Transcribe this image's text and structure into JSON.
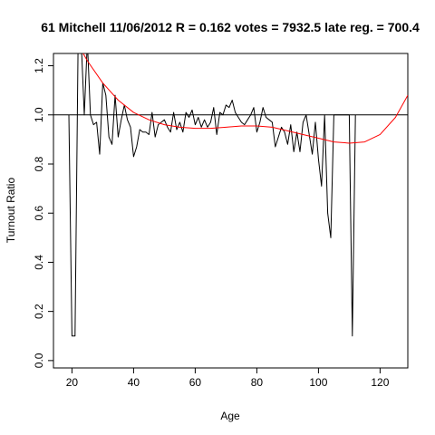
{
  "chart_data": {
    "type": "line",
    "title": "61 Mitchell 11/06/2012 R = 0.162 votes = 7932.5 late reg. = 700.4",
    "xlabel": "Age",
    "ylabel": "Turnout Ratio",
    "xlim": [
      14,
      129
    ],
    "ylim": [
      -0.03,
      1.25
    ],
    "x_ticks": [
      20,
      40,
      60,
      80,
      100,
      120
    ],
    "y_ticks": [
      0.0,
      0.2,
      0.4,
      0.6,
      0.8,
      1.0,
      1.2
    ],
    "x_tick_labels": [
      "20",
      "40",
      "60",
      "80",
      "100",
      "120"
    ],
    "y_tick_labels": [
      "0.0",
      "0.2",
      "0.4",
      "0.6",
      "0.8",
      "1.0",
      "1.2"
    ],
    "reference_line": {
      "y": 1.0,
      "color": "#000000"
    },
    "series": [
      {
        "color": "#000000",
        "x": [
          19,
          20,
          21,
          22,
          23,
          24,
          25,
          26,
          27,
          28,
          29,
          30,
          31,
          32,
          33,
          34,
          35,
          36,
          37,
          38,
          39,
          40,
          41,
          42,
          43,
          44,
          45,
          46,
          47,
          48,
          49,
          50,
          51,
          52,
          53,
          54,
          55,
          56,
          57,
          58,
          59,
          60,
          61,
          62,
          63,
          64,
          65,
          66,
          67,
          68,
          69,
          70,
          71,
          72,
          73,
          74,
          75,
          76,
          77,
          78,
          79,
          80,
          81,
          82,
          83,
          84,
          85,
          86,
          87,
          88,
          89,
          90,
          91,
          92,
          93,
          94,
          95,
          96,
          97,
          98,
          99,
          100,
          101,
          102,
          103,
          104,
          105,
          106,
          107,
          108,
          109,
          110,
          111,
          112
        ],
        "y": [
          1.0,
          0.1,
          0.1,
          1.3,
          1.3,
          1.0,
          1.3,
          1.0,
          0.96,
          0.97,
          0.84,
          1.13,
          1.08,
          0.91,
          0.88,
          1.08,
          0.91,
          0.98,
          1.04,
          0.98,
          0.95,
          0.83,
          0.87,
          0.94,
          0.93,
          0.93,
          0.92,
          1.01,
          0.91,
          0.96,
          0.97,
          0.98,
          0.95,
          0.93,
          1.01,
          0.94,
          0.97,
          0.93,
          1.01,
          0.99,
          1.02,
          0.96,
          0.99,
          0.95,
          0.98,
          0.95,
          0.97,
          1.03,
          0.92,
          1.01,
          1.0,
          1.04,
          1.03,
          1.06,
          1.01,
          0.99,
          0.97,
          0.96,
          0.98,
          1.0,
          1.03,
          0.93,
          0.97,
          1.03,
          0.99,
          0.98,
          0.97,
          0.87,
          0.91,
          0.95,
          0.93,
          0.88,
          0.96,
          0.85,
          0.93,
          0.85,
          0.97,
          1.0,
          0.92,
          0.84,
          0.97,
          0.82,
          0.71,
          1.0,
          0.6,
          0.5,
          1.0,
          1.0,
          1.0,
          1.0,
          1.0,
          1.0,
          0.1,
          1.0
        ],
        "values_note": ""
      },
      {
        "color": "#ff0000",
        "x": [
          14,
          20,
          25,
          30,
          35,
          40,
          45,
          50,
          55,
          60,
          65,
          70,
          75,
          80,
          85,
          90,
          95,
          100,
          105,
          110,
          115,
          120,
          125,
          129
        ],
        "y": [
          1.45,
          1.33,
          1.22,
          1.13,
          1.06,
          1.01,
          0.98,
          0.96,
          0.95,
          0.945,
          0.945,
          0.95,
          0.955,
          0.955,
          0.95,
          0.935,
          0.92,
          0.905,
          0.89,
          0.885,
          0.89,
          0.92,
          0.99,
          1.08
        ]
      }
    ],
    "grid": false,
    "legend": "none"
  }
}
